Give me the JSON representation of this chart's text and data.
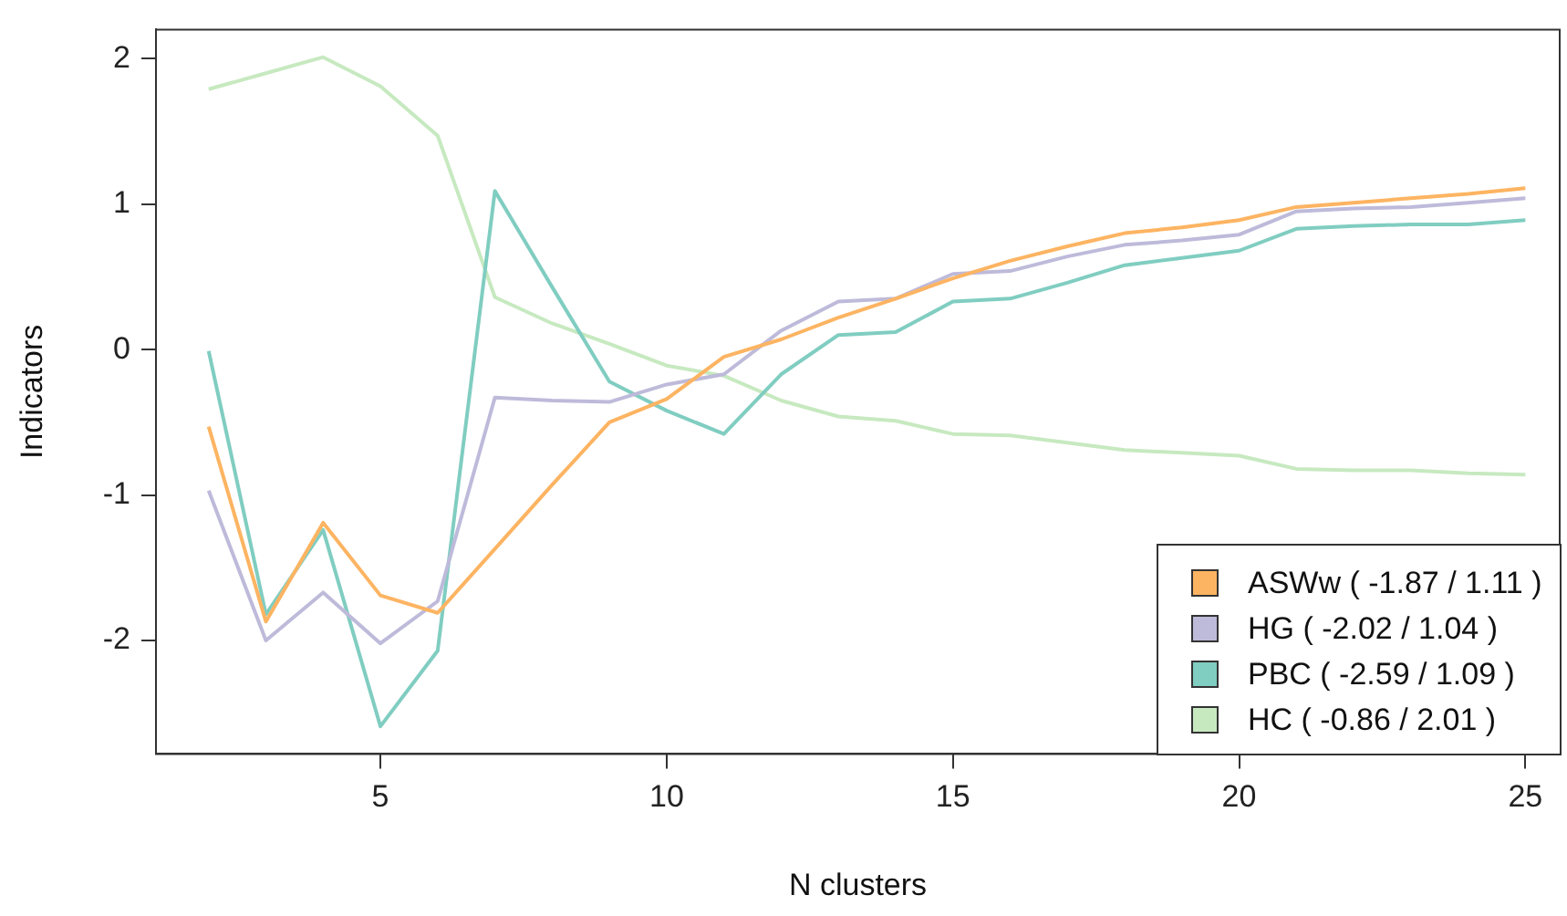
{
  "chart_data": {
    "type": "line",
    "xlabel": "N clusters",
    "ylabel": "Indicators",
    "x": [
      2,
      3,
      4,
      5,
      6,
      7,
      8,
      9,
      10,
      11,
      12,
      13,
      14,
      15,
      16,
      17,
      18,
      19,
      20,
      21,
      22,
      23,
      24,
      25
    ],
    "xlim": [
      1.08,
      25.6
    ],
    "xticks": [
      5,
      10,
      15,
      20,
      25
    ],
    "ylim": [
      -2.78,
      2.2
    ],
    "yticks": [
      -2,
      -1,
      0,
      1,
      2
    ],
    "grid": false,
    "legend": "bottom right",
    "marker": "none",
    "line_style": "solid",
    "series": [
      {
        "name": "ASWw ( -1.87 / 1.11 )",
        "color": "#fdb462",
        "values": [
          -0.53,
          -1.87,
          -1.19,
          -1.69,
          -1.81,
          -1.37,
          -0.93,
          -0.5,
          -0.34,
          -0.05,
          0.07,
          0.22,
          0.35,
          0.49,
          0.61,
          0.71,
          0.8,
          0.84,
          0.89,
          0.98,
          1.01,
          1.04,
          1.07,
          1.11
        ]
      },
      {
        "name": "HG ( -2.02 / 1.04 )",
        "color": "#bebada",
        "values": [
          -0.97,
          -2.0,
          -1.67,
          -2.02,
          -1.73,
          -0.33,
          -0.35,
          -0.36,
          -0.24,
          -0.17,
          0.13,
          0.33,
          0.35,
          0.52,
          0.54,
          0.64,
          0.72,
          0.75,
          0.79,
          0.95,
          0.97,
          0.98,
          1.01,
          1.04
        ]
      },
      {
        "name": "PBC ( -2.59 / 1.09 )",
        "color": "#80cdc1",
        "values": [
          -0.01,
          -1.82,
          -1.24,
          -2.59,
          -2.07,
          1.09,
          0.43,
          -0.22,
          -0.42,
          -0.58,
          -0.17,
          0.1,
          0.12,
          0.33,
          0.35,
          0.46,
          0.58,
          0.63,
          0.68,
          0.83,
          0.85,
          0.86,
          0.86,
          0.89
        ]
      },
      {
        "name": "HC ( -0.86 / 2.01 )",
        "color": "#c7e9c0",
        "values": [
          1.79,
          1.9,
          2.01,
          1.81,
          1.47,
          0.36,
          0.18,
          0.04,
          -0.11,
          -0.18,
          -0.35,
          -0.46,
          -0.49,
          -0.58,
          -0.59,
          -0.64,
          -0.69,
          -0.71,
          -0.73,
          -0.82,
          -0.83,
          -0.83,
          -0.85,
          -0.86
        ]
      }
    ]
  }
}
